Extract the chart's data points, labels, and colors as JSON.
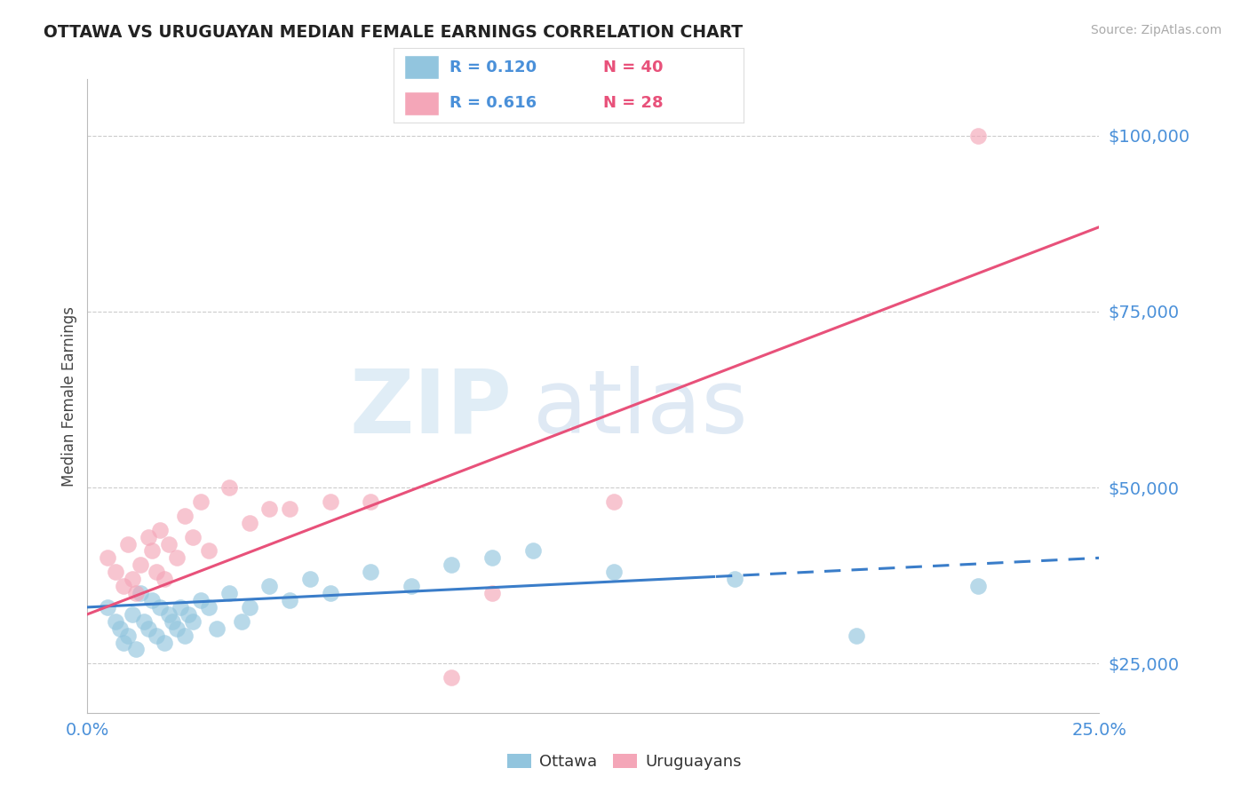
{
  "title": "OTTAWA VS URUGUAYAN MEDIAN FEMALE EARNINGS CORRELATION CHART",
  "source_text": "Source: ZipAtlas.com",
  "ylabel": "Median Female Earnings",
  "xlim": [
    0.0,
    0.25
  ],
  "ylim": [
    18000,
    108000
  ],
  "yticks": [
    25000,
    50000,
    75000,
    100000
  ],
  "ytick_labels": [
    "$25,000",
    "$50,000",
    "$75,000",
    "$100,000"
  ],
  "xticks": [
    0.0,
    0.25
  ],
  "xtick_labels": [
    "0.0%",
    "25.0%"
  ],
  "ottawa_color": "#92C5DE",
  "uruguayan_color": "#F4A6B8",
  "ottawa_line_color": "#3A7DC9",
  "uruguayan_line_color": "#E8517A",
  "tick_color": "#4A90D9",
  "background_color": "#FFFFFF",
  "ottawa_x": [
    0.005,
    0.007,
    0.008,
    0.009,
    0.01,
    0.011,
    0.012,
    0.013,
    0.014,
    0.015,
    0.016,
    0.017,
    0.018,
    0.019,
    0.02,
    0.021,
    0.022,
    0.023,
    0.024,
    0.025,
    0.026,
    0.028,
    0.03,
    0.032,
    0.035,
    0.038,
    0.04,
    0.045,
    0.05,
    0.055,
    0.06,
    0.07,
    0.08,
    0.09,
    0.1,
    0.11,
    0.13,
    0.16,
    0.19,
    0.22
  ],
  "ottawa_y": [
    33000,
    31000,
    30000,
    28000,
    29000,
    32000,
    27000,
    35000,
    31000,
    30000,
    34000,
    29000,
    33000,
    28000,
    32000,
    31000,
    30000,
    33000,
    29000,
    32000,
    31000,
    34000,
    33000,
    30000,
    35000,
    31000,
    33000,
    36000,
    34000,
    37000,
    35000,
    38000,
    36000,
    39000,
    40000,
    41000,
    38000,
    37000,
    29000,
    36000
  ],
  "uruguayan_x": [
    0.005,
    0.007,
    0.009,
    0.01,
    0.011,
    0.012,
    0.013,
    0.015,
    0.016,
    0.017,
    0.018,
    0.019,
    0.02,
    0.022,
    0.024,
    0.026,
    0.028,
    0.03,
    0.035,
    0.04,
    0.045,
    0.05,
    0.06,
    0.07,
    0.09,
    0.1,
    0.13,
    0.22
  ],
  "uruguayan_y": [
    40000,
    38000,
    36000,
    42000,
    37000,
    35000,
    39000,
    43000,
    41000,
    38000,
    44000,
    37000,
    42000,
    40000,
    46000,
    43000,
    48000,
    41000,
    50000,
    45000,
    47000,
    47000,
    48000,
    48000,
    23000,
    35000,
    48000,
    100000
  ],
  "line_cutoff": 0.155,
  "watermark_zip_color": "#C8DFF0",
  "watermark_atlas_color": "#B8D0E8",
  "legend_border_color": "#DDDDDD",
  "grid_color": "#CCCCCC"
}
